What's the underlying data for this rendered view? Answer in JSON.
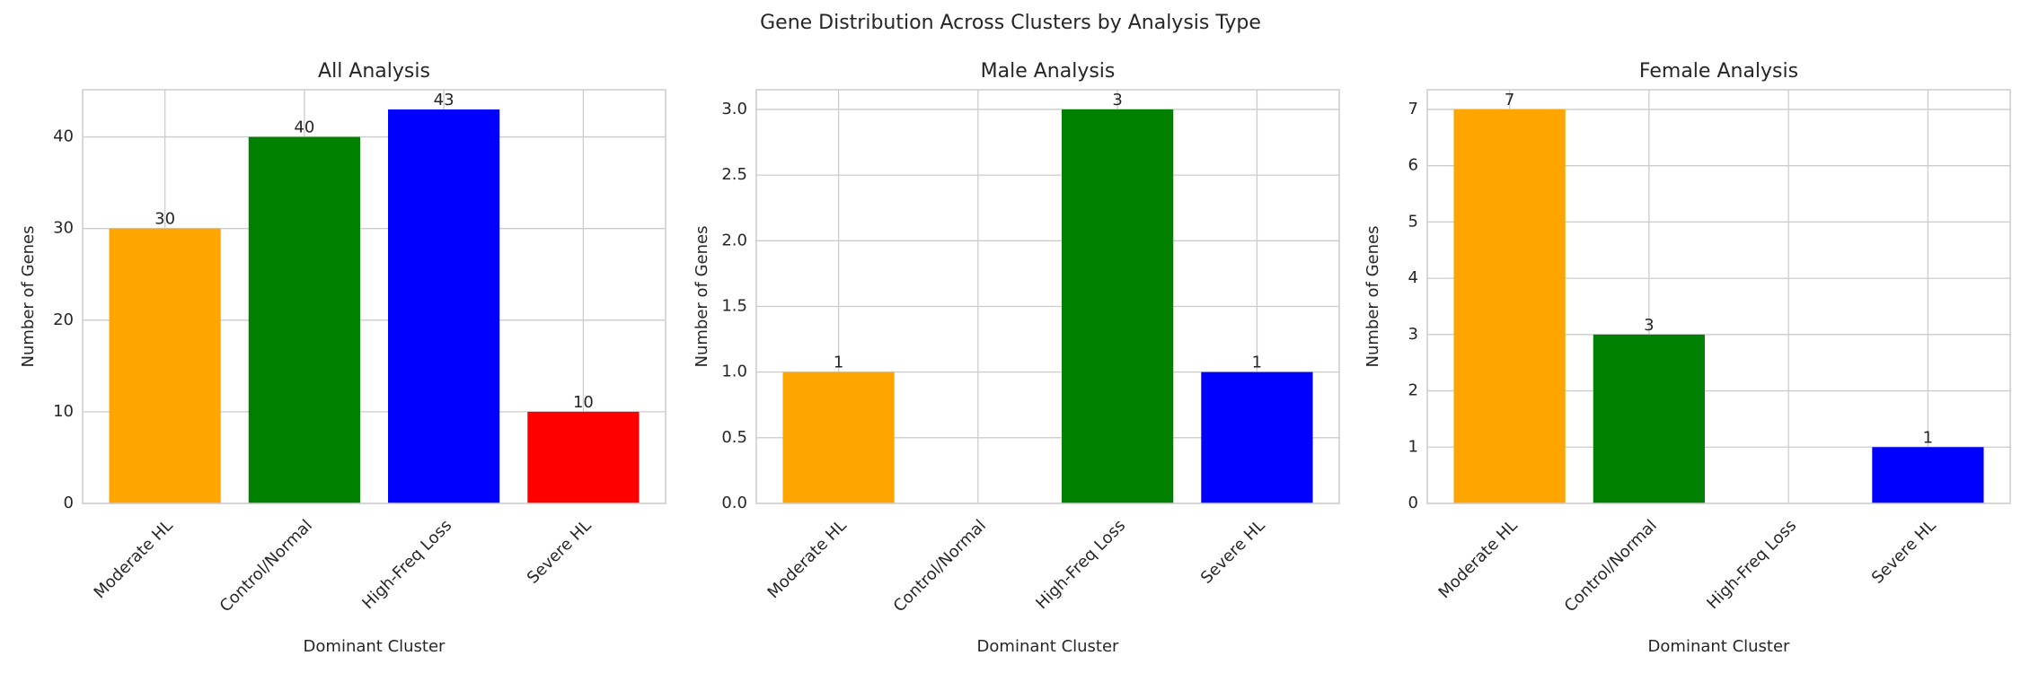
{
  "title": "Gene Distribution Across Clusters by Analysis Type",
  "chart_data": [
    {
      "type": "bar",
      "title": "All Analysis",
      "xlabel": "Dominant Cluster",
      "ylabel": "Number of Genes",
      "categories": [
        "Moderate HL",
        "Control/Normal",
        "High-Freq Loss",
        "Severe HL"
      ],
      "values": [
        30,
        40,
        43,
        10
      ],
      "colors": [
        "orange",
        "green",
        "blue",
        "red"
      ],
      "ylim": [
        0,
        45.15
      ],
      "yticks": [
        0,
        10,
        20,
        30,
        40
      ],
      "grid": true
    },
    {
      "type": "bar",
      "title": "Male Analysis",
      "xlabel": "Dominant Cluster",
      "ylabel": "Number of Genes",
      "categories": [
        "Moderate HL",
        "Control/Normal",
        "High-Freq Loss",
        "Severe HL"
      ],
      "values": [
        1,
        null,
        3,
        1
      ],
      "colors": [
        "orange",
        null,
        "green",
        "blue"
      ],
      "ylim": [
        0,
        3.15
      ],
      "yticks": [
        {
          "value": 0,
          "label": "0.0"
        },
        0.5,
        {
          "value": 1,
          "label": "1.0"
        },
        1.5,
        {
          "value": 2,
          "label": "2.0"
        },
        2.5,
        {
          "value": 3,
          "label": "3.0"
        }
      ],
      "grid": true
    },
    {
      "type": "bar",
      "title": "Female Analysis",
      "xlabel": "Dominant Cluster",
      "ylabel": "Number of Genes",
      "categories": [
        "Moderate HL",
        "Control/Normal",
        "High-Freq Loss",
        "Severe HL"
      ],
      "values": [
        7,
        3,
        null,
        1
      ],
      "colors": [
        "orange",
        "green",
        null,
        "blue"
      ],
      "ylim": [
        0,
        7.35
      ],
      "yticks": [
        0,
        1,
        2,
        3,
        4,
        5,
        6,
        7
      ],
      "grid": true
    }
  ]
}
